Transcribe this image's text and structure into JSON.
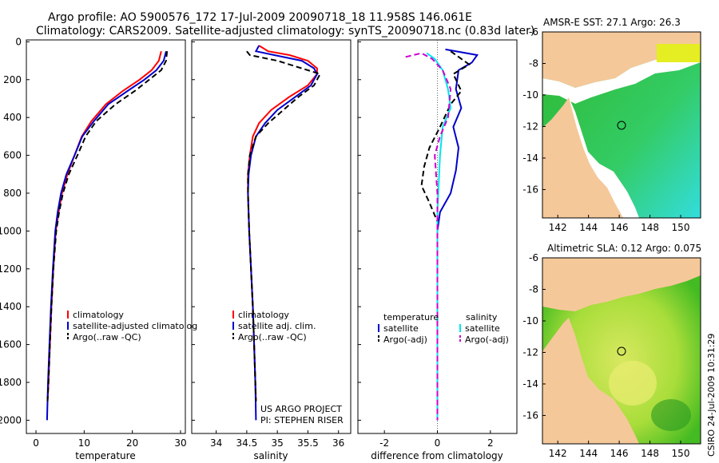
{
  "header": {
    "title_line1": "Argo profile: AO 5900576_172 17-Jul-2009 20090718_18 11.958S 146.061E",
    "title_line2": "Climatology: CARS2009. Satellite-adjusted climatology: synTS_20090718.nc (0.83d later)"
  },
  "footer": {
    "credit": "CSIRO 24-Jul-2009 10:31:29"
  },
  "colors": {
    "clim": "#ff0000",
    "sat": "#0000cc",
    "argo": "#000000",
    "sal_sat": "#00e5ee",
    "sal_argo": "#cc00cc",
    "land": "#f5c89a",
    "sea_green": "#22bb22"
  },
  "chart_data": [
    {
      "type": "line",
      "id": "temperature",
      "xlabel": "temperature",
      "ylabel": "",
      "xlim": [
        -2,
        31
      ],
      "ylim": [
        2050,
        0
      ],
      "xticks": [
        0,
        10,
        20,
        30
      ],
      "yticks": [
        0,
        200,
        400,
        600,
        800,
        1000,
        1200,
        1400,
        1600,
        1800,
        2000
      ],
      "legend": [
        "climatology",
        "satellite-adjusted climatolog",
        "Argo(..raw -QC)"
      ],
      "series": [
        {
          "name": "climatology",
          "color": "clim",
          "dash": false,
          "points": [
            [
              26,
              50
            ],
            [
              25.5,
              100
            ],
            [
              24,
              150
            ],
            [
              21.5,
              200
            ],
            [
              18,
              260
            ],
            [
              14.5,
              330
            ],
            [
              11.5,
              420
            ],
            [
              9.5,
              500
            ],
            [
              8,
              600
            ],
            [
              6.5,
              700
            ],
            [
              5.4,
              800
            ],
            [
              4.7,
              900
            ],
            [
              4.1,
              1000
            ],
            [
              3.6,
              1200
            ],
            [
              3.2,
              1400
            ],
            [
              2.9,
              1600
            ],
            [
              2.6,
              1800
            ],
            [
              2.4,
              1900
            ]
          ]
        },
        {
          "name": "satellite-adjusted climatology",
          "color": "sat",
          "dash": false,
          "points": [
            [
              27,
              50
            ],
            [
              26.5,
              100
            ],
            [
              25,
              150
            ],
            [
              22.5,
              200
            ],
            [
              19,
              260
            ],
            [
              15,
              330
            ],
            [
              12,
              420
            ],
            [
              9.6,
              500
            ],
            [
              8,
              600
            ],
            [
              6.3,
              700
            ],
            [
              5.2,
              800
            ],
            [
              4.5,
              900
            ],
            [
              4,
              1000
            ],
            [
              3.5,
              1200
            ],
            [
              3.1,
              1400
            ],
            [
              2.8,
              1600
            ],
            [
              2.5,
              1800
            ],
            [
              2.3,
              2000
            ]
          ]
        },
        {
          "name": "Argo(..raw -QC)",
          "color": "argo",
          "dash": true,
          "points": [
            [
              27.2,
              50
            ],
            [
              27,
              100
            ],
            [
              26,
              150
            ],
            [
              23.5,
              200
            ],
            [
              20.5,
              260
            ],
            [
              16.5,
              330
            ],
            [
              12.5,
              420
            ],
            [
              10.3,
              500
            ],
            [
              8.6,
              600
            ],
            [
              6.8,
              700
            ],
            [
              5.6,
              800
            ],
            [
              4.8,
              900
            ],
            [
              4.2,
              1000
            ],
            [
              3.6,
              1200
            ],
            [
              3.2,
              1400
            ],
            [
              2.9,
              1600
            ],
            [
              2.6,
              1800
            ],
            [
              2.4,
              1900
            ]
          ]
        }
      ]
    },
    {
      "type": "line",
      "id": "salinity",
      "xlabel": "salinity",
      "xlim": [
        33.6,
        36.2
      ],
      "ylim": [
        2050,
        0
      ],
      "xticks": [
        34,
        34.5,
        35,
        35.5,
        36
      ],
      "legend": [
        "climatology",
        "satellite adj. clim.",
        "Argo(..raw -QC)"
      ],
      "annotation": [
        "US ARGO PROJECT",
        "PI: STEPHEN RISER"
      ],
      "series": [
        {
          "name": "climatology",
          "color": "clim",
          "dash": false,
          "points": [
            [
              34.7,
              20
            ],
            [
              34.85,
              50
            ],
            [
              35.2,
              70
            ],
            [
              35.5,
              100
            ],
            [
              35.65,
              140
            ],
            [
              35.65,
              170
            ],
            [
              35.5,
              230
            ],
            [
              35.2,
              290
            ],
            [
              34.9,
              360
            ],
            [
              34.7,
              430
            ],
            [
              34.6,
              500
            ],
            [
              34.55,
              600
            ],
            [
              34.52,
              700
            ],
            [
              34.52,
              800
            ],
            [
              34.54,
              1000
            ],
            [
              34.57,
              1200
            ],
            [
              34.6,
              1400
            ],
            [
              34.62,
              1600
            ],
            [
              34.64,
              1800
            ],
            [
              34.65,
              1900
            ]
          ]
        },
        {
          "name": "satellite adj. clim.",
          "color": "sat",
          "dash": false,
          "points": [
            [
              34.7,
              20
            ],
            [
              34.65,
              50
            ],
            [
              34.95,
              70
            ],
            [
              35.4,
              100
            ],
            [
              35.6,
              140
            ],
            [
              35.65,
              170
            ],
            [
              35.55,
              230
            ],
            [
              35.3,
              290
            ],
            [
              35,
              360
            ],
            [
              34.8,
              430
            ],
            [
              34.65,
              500
            ],
            [
              34.57,
              600
            ],
            [
              34.53,
              700
            ],
            [
              34.52,
              800
            ],
            [
              34.54,
              1000
            ],
            [
              34.57,
              1200
            ],
            [
              34.6,
              1400
            ],
            [
              34.62,
              1600
            ],
            [
              34.64,
              1800
            ],
            [
              34.65,
              2000
            ]
          ]
        },
        {
          "name": "Argo(..raw -QC)",
          "color": "argo",
          "dash": true,
          "points": [
            [
              34.5,
              50
            ],
            [
              34.55,
              70
            ],
            [
              35,
              100
            ],
            [
              35.4,
              140
            ],
            [
              35.7,
              170
            ],
            [
              35.6,
              230
            ],
            [
              35.35,
              290
            ],
            [
              35.1,
              360
            ],
            [
              34.85,
              430
            ],
            [
              34.65,
              500
            ],
            [
              34.55,
              600
            ],
            [
              34.52,
              700
            ],
            [
              34.52,
              800
            ],
            [
              34.54,
              1000
            ],
            [
              34.57,
              1200
            ],
            [
              34.6,
              1400
            ],
            [
              34.62,
              1600
            ],
            [
              34.64,
              1800
            ],
            [
              34.65,
              1900
            ]
          ]
        }
      ]
    },
    {
      "type": "line",
      "id": "difference",
      "xlabel": "difference from climatology",
      "xlim": [
        -3,
        3
      ],
      "ylim": [
        2050,
        0
      ],
      "xticks": [
        -2,
        0,
        2
      ],
      "legend_temperature": {
        "header": "temperature",
        "items": [
          "satellite",
          "Argo(-adj)"
        ]
      },
      "legend_salinity": {
        "header": "salinity",
        "items": [
          "satellite",
          "Argo(-adj)"
        ]
      },
      "series": [
        {
          "name": "temperature satellite",
          "color": "sat",
          "dash": false,
          "points": [
            [
              0.3,
              40
            ],
            [
              1.5,
              70
            ],
            [
              1.3,
              110
            ],
            [
              0.8,
              150
            ],
            [
              0.7,
              250
            ],
            [
              0.9,
              350
            ],
            [
              0.6,
              450
            ],
            [
              0.8,
              560
            ],
            [
              0.7,
              680
            ],
            [
              0.5,
              800
            ],
            [
              0.1,
              900
            ],
            [
              0,
              1000
            ],
            [
              0,
              2000
            ]
          ]
        },
        {
          "name": "temperature Argo(-adj)",
          "color": "argo",
          "dash": true,
          "points": [
            [
              0.5,
              50
            ],
            [
              0.9,
              90
            ],
            [
              1.2,
              120
            ],
            [
              0.6,
              170
            ],
            [
              0.9,
              260
            ],
            [
              0.5,
              330
            ],
            [
              0.1,
              450
            ],
            [
              -0.3,
              560
            ],
            [
              -0.5,
              660
            ],
            [
              -0.6,
              760
            ],
            [
              -0.3,
              850
            ],
            [
              0,
              950
            ],
            [
              0,
              2000
            ]
          ]
        },
        {
          "name": "salinity satellite",
          "color": "sal_sat",
          "dash": false,
          "points": [
            [
              -0.4,
              60
            ],
            [
              -0.1,
              90
            ],
            [
              0.2,
              150
            ],
            [
              0.4,
              250
            ],
            [
              0.5,
              350
            ],
            [
              0.2,
              450
            ],
            [
              0.1,
              600
            ],
            [
              0,
              900
            ],
            [
              0,
              2000
            ]
          ]
        },
        {
          "name": "salinity Argo(-adj)",
          "color": "sal_argo",
          "dash": true,
          "points": [
            [
              -1.2,
              80
            ],
            [
              -0.6,
              60
            ],
            [
              -0.2,
              90
            ],
            [
              0.2,
              150
            ],
            [
              0.5,
              250
            ],
            [
              0.4,
              400
            ],
            [
              0.1,
              500
            ],
            [
              -0.1,
              600
            ],
            [
              0,
              800
            ],
            [
              0,
              2000
            ]
          ]
        }
      ]
    },
    {
      "type": "heatmap",
      "id": "sst-map",
      "title": "AMSR-E SST: 27.1 Argo: 26.3",
      "xticks": [
        142,
        144,
        146,
        148,
        150
      ],
      "yticks": [
        -6,
        -8,
        -10,
        -12,
        -14,
        -16
      ],
      "xlim": [
        141,
        151.3
      ],
      "ylim": [
        -17.8,
        -6
      ],
      "marker": [
        146.06,
        -11.96
      ]
    },
    {
      "type": "heatmap",
      "id": "sla-map",
      "title": "Altimetric SLA: 0.12 Argo: 0.075",
      "xticks": [
        142,
        144,
        146,
        148,
        150
      ],
      "yticks": [
        -6,
        -8,
        -10,
        -12,
        -14,
        -16
      ],
      "xlim": [
        141,
        151.3
      ],
      "ylim": [
        -17.8,
        -6
      ],
      "marker": [
        146.06,
        -11.96
      ]
    }
  ]
}
